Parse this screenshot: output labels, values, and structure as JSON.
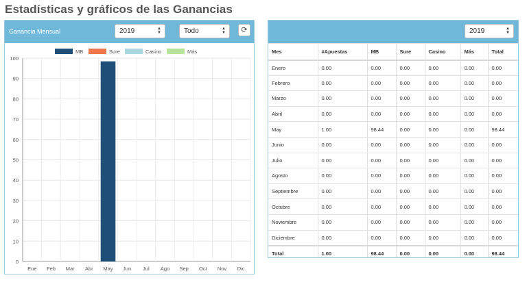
{
  "page": {
    "title": "Estadísticas y gráficos de las Ganancias"
  },
  "left_panel": {
    "label": "Ganancia Mensual",
    "year_select": {
      "value": "2019"
    },
    "type_select": {
      "value": "Todo"
    },
    "refresh_icon": "refresh-icon"
  },
  "legend": [
    {
      "name": "MB",
      "color": "#1f4e79"
    },
    {
      "name": "Sure",
      "color": "#f0764e"
    },
    {
      "name": "Casino",
      "color": "#a9d8e0"
    },
    {
      "name": "Más",
      "color": "#b7e29a"
    }
  ],
  "chart_data": {
    "type": "bar",
    "categories": [
      "Ene",
      "Feb",
      "Mar",
      "Abr",
      "May",
      "Jun",
      "Jul",
      "Ago",
      "Sep",
      "Oct",
      "Nov",
      "Dic"
    ],
    "series": [
      {
        "name": "MB",
        "color": "#1f4e79",
        "values": [
          0,
          0,
          0,
          0,
          98.44,
          0,
          0,
          0,
          0,
          0,
          0,
          0
        ]
      },
      {
        "name": "Sure",
        "color": "#f0764e",
        "values": [
          0,
          0,
          0,
          0,
          0,
          0,
          0,
          0,
          0,
          0,
          0,
          0
        ]
      },
      {
        "name": "Casino",
        "color": "#a9d8e0",
        "values": [
          0,
          0,
          0,
          0,
          0,
          0,
          0,
          0,
          0,
          0,
          0,
          0
        ]
      },
      {
        "name": "Más",
        "color": "#b7e29a",
        "values": [
          0,
          0,
          0,
          0,
          0,
          0,
          0,
          0,
          0,
          0,
          0,
          0
        ]
      }
    ],
    "yticks": [
      "0",
      "10",
      "20",
      "30",
      "40",
      "50",
      "60",
      "70",
      "80",
      "90",
      "100"
    ],
    "ylim": [
      0,
      100
    ],
    "grid": true,
    "legend_position": "top"
  },
  "right_panel": {
    "year_select": {
      "value": "2019"
    },
    "table": {
      "headers": [
        "Mes",
        "#Apuestas",
        "MB",
        "Sure",
        "Casino",
        "Más",
        "Total"
      ],
      "rows": [
        [
          "Enero",
          "0.00",
          "0.00",
          "0.00",
          "0.00",
          "0.00",
          "0.00"
        ],
        [
          "Febrero",
          "0.00",
          "0.00",
          "0.00",
          "0.00",
          "0.00",
          "0.00"
        ],
        [
          "Marzo",
          "0.00",
          "0.00",
          "0.00",
          "0.00",
          "0.00",
          "0.00"
        ],
        [
          "Abril",
          "0.00",
          "0.00",
          "0.00",
          "0.00",
          "0.00",
          "0.00"
        ],
        [
          "May",
          "1.00",
          "98.44",
          "0.00",
          "0.00",
          "0.00",
          "98.44"
        ],
        [
          "Junio",
          "0.00",
          "0.00",
          "0.00",
          "0.00",
          "0.00",
          "0.00"
        ],
        [
          "Julio",
          "0.00",
          "0.00",
          "0.00",
          "0.00",
          "0.00",
          "0.00"
        ],
        [
          "Agosto",
          "0.00",
          "0.00",
          "0.00",
          "0.00",
          "0.00",
          "0.00"
        ],
        [
          "Septiembre",
          "0.00",
          "0.00",
          "0.00",
          "0.00",
          "0.00",
          "0.00"
        ],
        [
          "Octubre",
          "0.00",
          "0.00",
          "0.00",
          "0.00",
          "0.00",
          "0.00"
        ],
        [
          "Noviembre",
          "0.00",
          "0.00",
          "0.00",
          "0.00",
          "0.00",
          "0.00"
        ],
        [
          "Diciembre",
          "0.00",
          "0.00",
          "0.00",
          "0.00",
          "0.00",
          "0.00"
        ]
      ],
      "total": [
        "Total",
        "1.00",
        "98.44",
        "0.00",
        "0.00",
        "0.00",
        "98.44"
      ]
    }
  }
}
